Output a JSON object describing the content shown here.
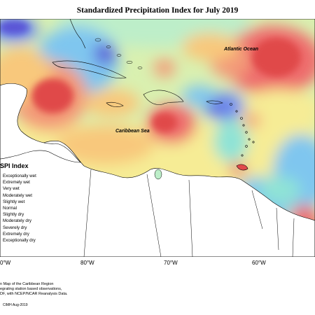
{
  "title": "Standardized Precipitation Index for July 2019",
  "map": {
    "labels": {
      "atlantic": "Atlantic Ocean",
      "caribbean": "Caribbean Sea"
    },
    "longitude_ticks": [
      "80°W",
      "70°W",
      "60°W"
    ],
    "left_partial_tick": "0°W"
  },
  "legend": {
    "title": "SPI Index",
    "items": [
      {
        "label": "Exceptionally wet",
        "color": "#5a55d6"
      },
      {
        "label": "Extremely wet",
        "color": "#6f8df0"
      },
      {
        "label": "Very wet",
        "color": "#7fc6ef"
      },
      {
        "label": "Moderately wet",
        "color": "#8fe3d6"
      },
      {
        "label": "Slightly wet",
        "color": "#bdeec9"
      },
      {
        "label": "Normal",
        "color": "#d9f0b0"
      },
      {
        "label": "Slightly dry",
        "color": "#f6ec95"
      },
      {
        "label": "Moderately dry",
        "color": "#f8c87c"
      },
      {
        "label": "Severely dry",
        "color": "#f39a78"
      },
      {
        "label": "Extremely dry",
        "color": "#ee6d6d"
      },
      {
        "label": "Exceptionally dry",
        "color": "#e04a4a"
      }
    ]
  },
  "notes": [
    "n Map of the Caribbean Region",
    "egrating station based observations,",
    "DF, with NCEP/NCAR Reanalysis Data."
  ],
  "credit": "CIMH Aug-2019"
}
